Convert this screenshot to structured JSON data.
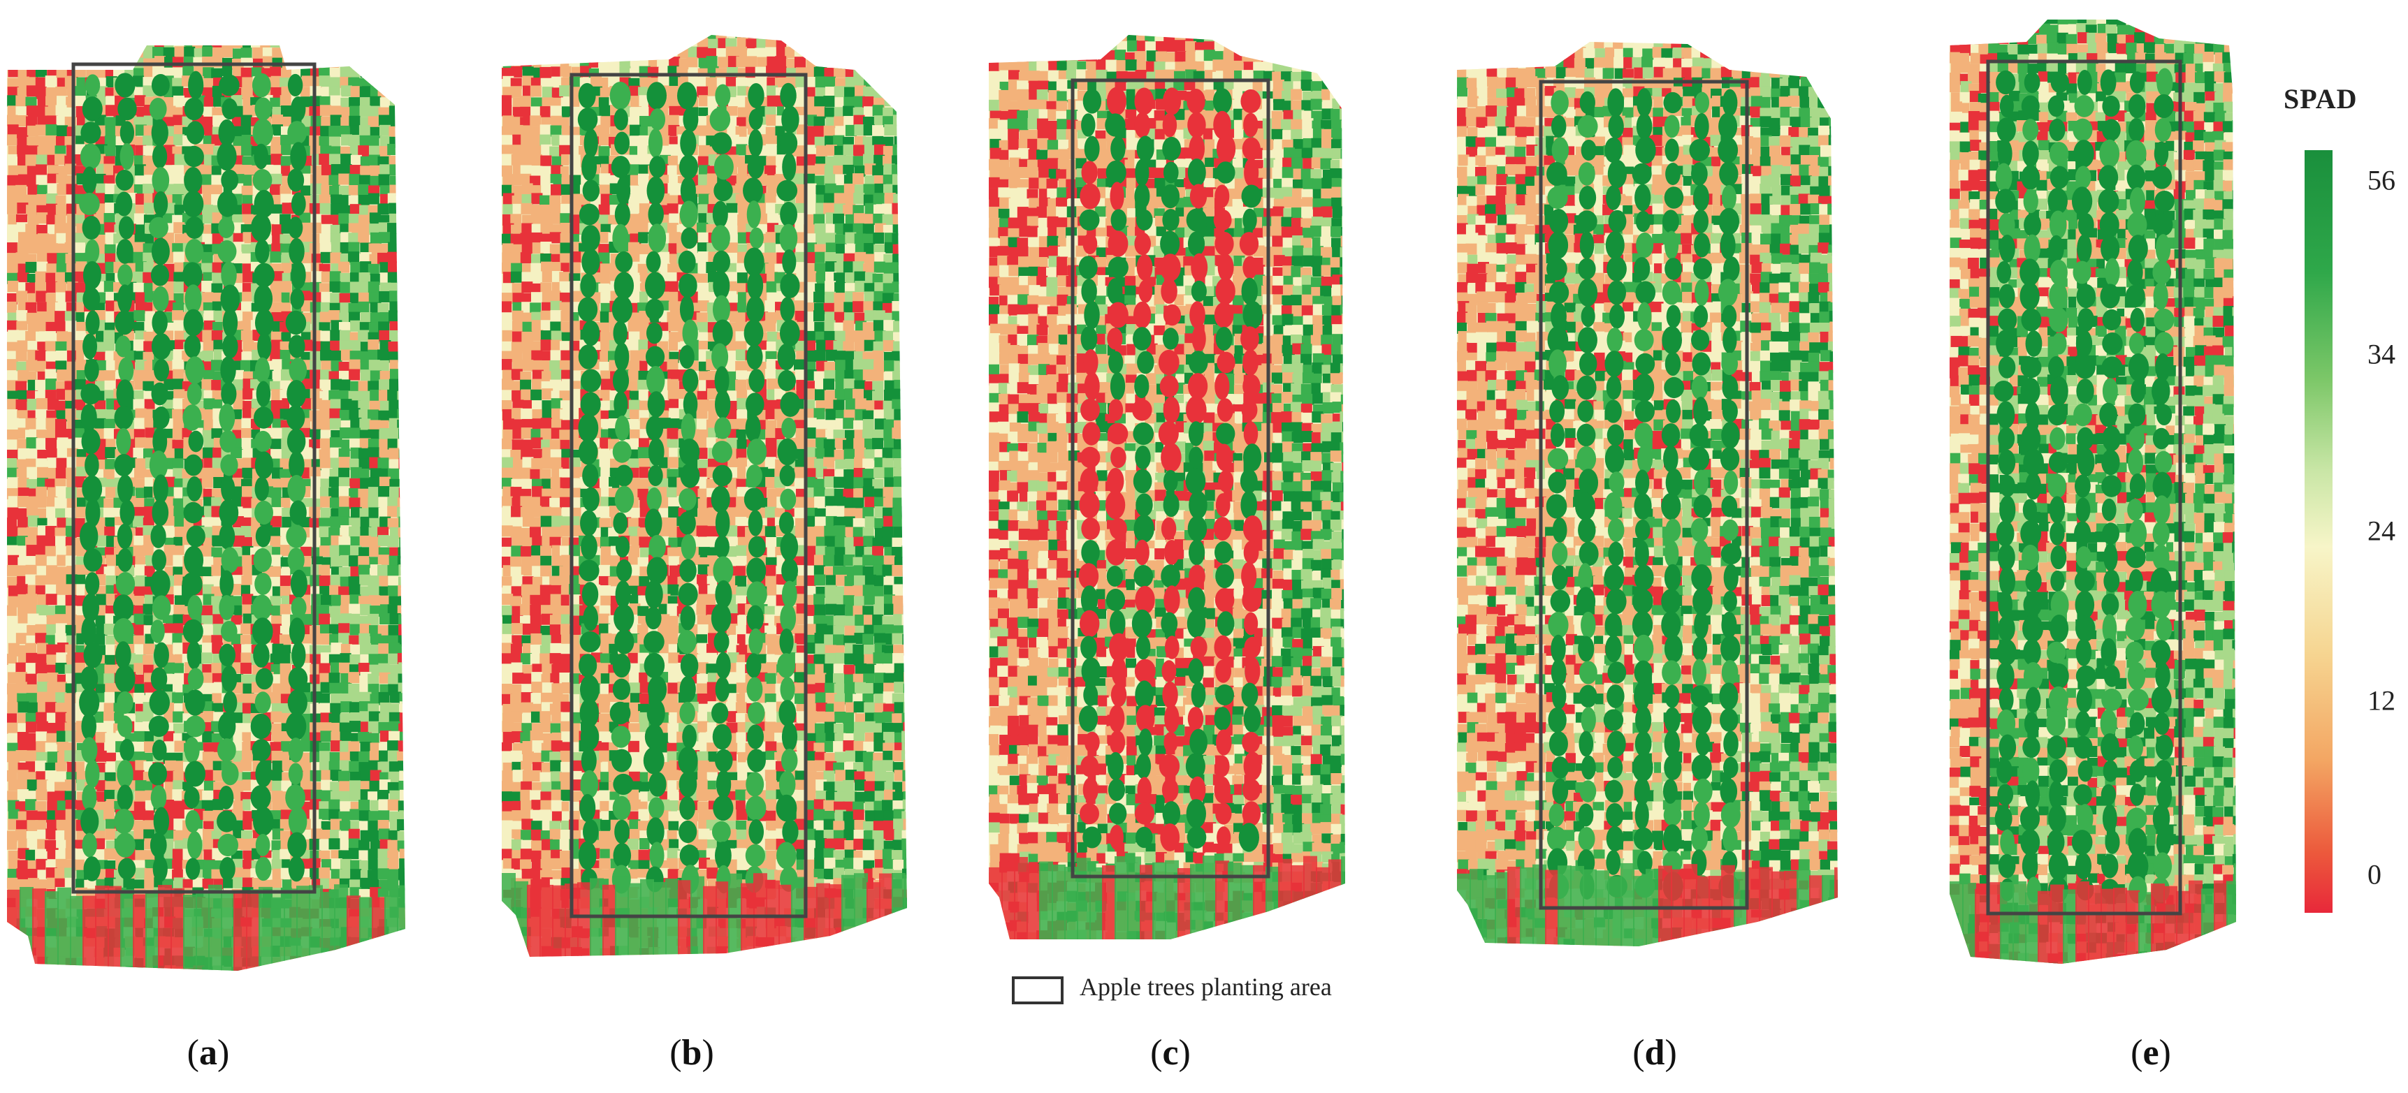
{
  "colors": {
    "green_dark": "#14913a",
    "green_mid": "#3bb04f",
    "green_light": "#a9d98a",
    "yellow_pale": "#f5f1c2",
    "orange": "#f3b27a",
    "red": "#e8323a",
    "frame": "#444444"
  },
  "panels": [
    {
      "letter": "a"
    },
    {
      "letter": "b"
    },
    {
      "letter": "c"
    },
    {
      "letter": "d"
    },
    {
      "letter": "e"
    }
  ],
  "legend": {
    "key_text": "Apple trees planting area"
  },
  "colorbar": {
    "title": "SPAD",
    "ticks": [
      "56",
      "34",
      "24",
      "12",
      "0"
    ],
    "tick_values": [
      56,
      34,
      24,
      12,
      0
    ]
  }
}
